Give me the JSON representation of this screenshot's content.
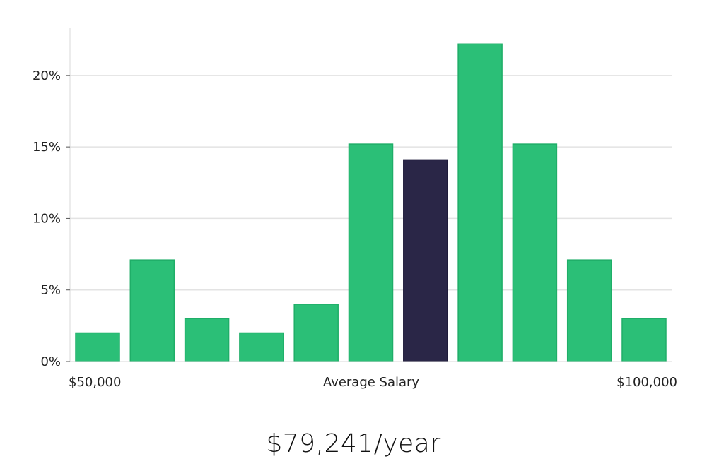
{
  "chart_data": {
    "type": "bar",
    "title": "",
    "xlabel": "Average Salary",
    "ylabel": "",
    "x_range_labels": {
      "min": "$50,000",
      "max": "$100,000"
    },
    "ylim": [
      0,
      23.3
    ],
    "yticks": [
      0,
      5,
      10,
      15,
      20
    ],
    "ytick_labels": [
      "0%",
      "5%",
      "10%",
      "15%",
      "20%"
    ],
    "values": [
      2,
      7.1,
      3,
      2,
      4,
      15.2,
      14.1,
      22.2,
      15.2,
      7.1,
      3
    ],
    "highlight_index": 6,
    "colors": {
      "bar": "#2bbf77",
      "bar_edge": "#1fae68",
      "highlight": "#2a2647",
      "highlight_edge": "#1d1a3a",
      "grid": "#e3e3e3",
      "axis": "#d8d8d8"
    }
  },
  "salary_text": "$79,241/year"
}
